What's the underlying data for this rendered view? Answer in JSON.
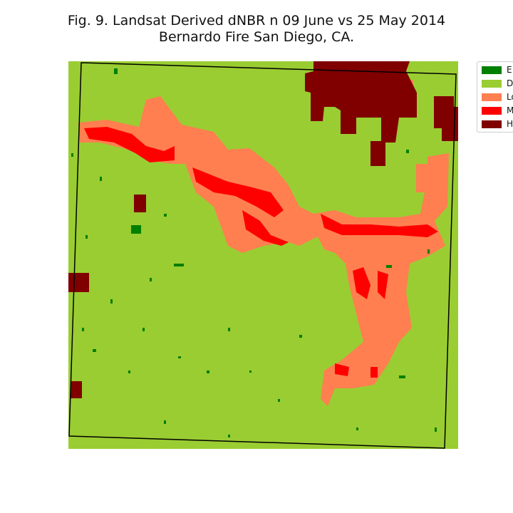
{
  "title_line1": "Fig. 9. Landsat Derived dNBR n 09 June vs 25 May 2014",
  "title_line2": "Bernardo Fire San Diego, CA.",
  "legend": [
    {
      "label": "E",
      "color": "#007f00"
    },
    {
      "label": "D",
      "color": "#9acd32"
    },
    {
      "label": "Lo",
      "color": "#ff7f50"
    },
    {
      "label": "M",
      "color": "#ff0000"
    },
    {
      "label": "H",
      "color": "#800000"
    }
  ],
  "colors": {
    "background_class": "#9acd32",
    "boundary": "#000000"
  }
}
